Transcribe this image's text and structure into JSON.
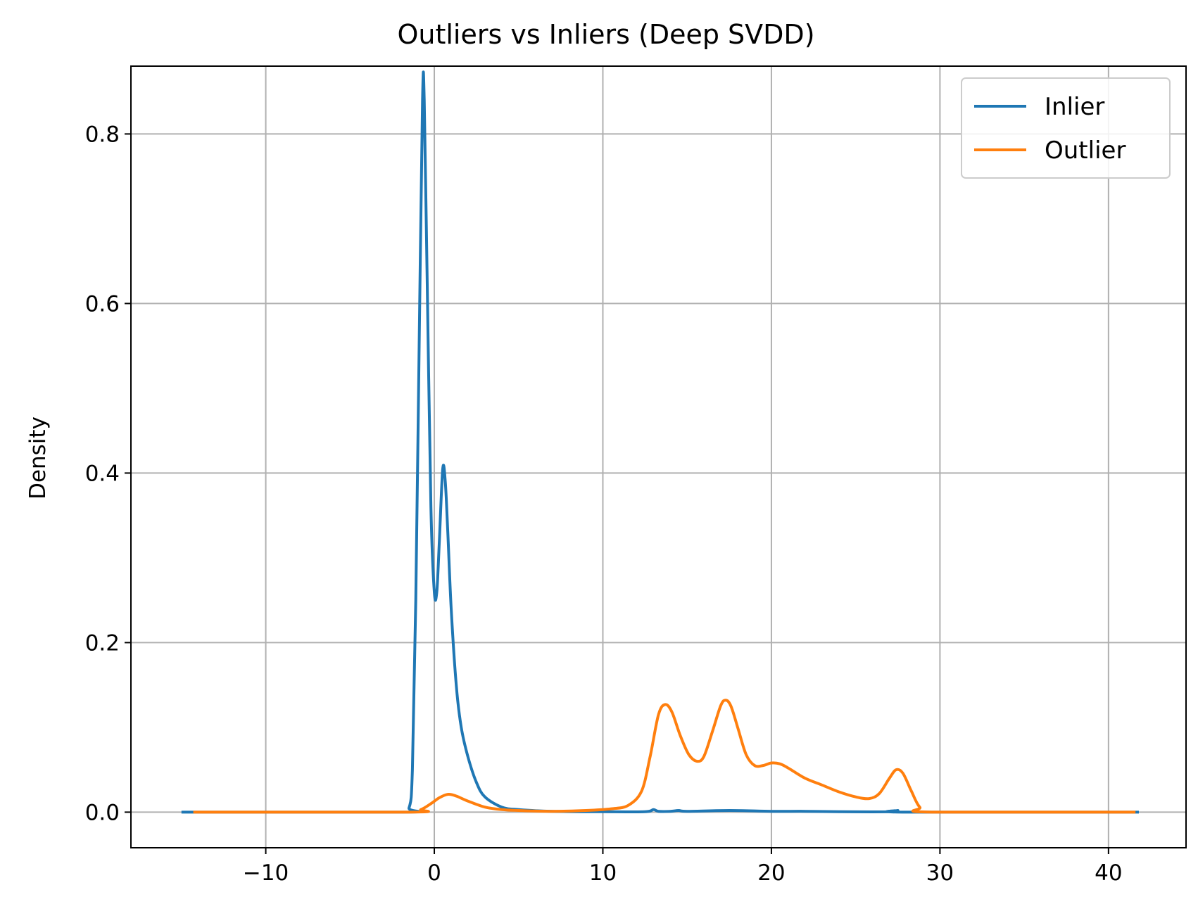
{
  "chart_data": {
    "type": "line",
    "title": "Outliers vs Inliers (Deep SVDD)",
    "xlabel": "",
    "ylabel": "Density",
    "xlim": [
      -18,
      44.6
    ],
    "ylim": [
      -0.042,
      0.88
    ],
    "xticks": [
      -10,
      0,
      10,
      20,
      30,
      40
    ],
    "xtick_labels": [
      "−10",
      "0",
      "10",
      "20",
      "30",
      "40"
    ],
    "yticks": [
      0.0,
      0.2,
      0.4,
      0.6,
      0.8
    ],
    "ytick_labels": [
      "0.0",
      "0.2",
      "0.4",
      "0.6",
      "0.8"
    ],
    "grid": true,
    "legend_position": "top-right",
    "series": [
      {
        "name": "Inlier",
        "color": "#1f77b4",
        "points": [
          [
            -15,
            0
          ],
          [
            -2,
            0
          ],
          [
            -1.5,
            0.005
          ],
          [
            -1.3,
            0.05
          ],
          [
            -1.1,
            0.25
          ],
          [
            -0.9,
            0.55
          ],
          [
            -0.7,
            0.84
          ],
          [
            -0.6,
            0.84
          ],
          [
            -0.4,
            0.6
          ],
          [
            -0.2,
            0.36
          ],
          [
            0.0,
            0.26
          ],
          [
            0.15,
            0.26
          ],
          [
            0.3,
            0.32
          ],
          [
            0.5,
            0.405
          ],
          [
            0.65,
            0.39
          ],
          [
            0.8,
            0.33
          ],
          [
            1.0,
            0.24
          ],
          [
            1.3,
            0.15
          ],
          [
            1.6,
            0.1
          ],
          [
            2.0,
            0.065
          ],
          [
            2.5,
            0.035
          ],
          [
            3.0,
            0.018
          ],
          [
            4.0,
            0.006
          ],
          [
            5.0,
            0.003
          ],
          [
            7.0,
            0.001
          ],
          [
            10.0,
            0.0005
          ],
          [
            12.5,
            0.0005
          ],
          [
            13.0,
            0.003
          ],
          [
            13.3,
            0.001
          ],
          [
            14.0,
            0.001
          ],
          [
            14.5,
            0.002
          ],
          [
            15.0,
            0.001
          ],
          [
            17.5,
            0.002
          ],
          [
            20.0,
            0.001
          ],
          [
            22.0,
            0.001
          ],
          [
            24.0,
            0.0005
          ],
          [
            27.0,
            0.0005
          ],
          [
            27.5,
            0.002
          ],
          [
            28.0,
            0.0
          ],
          [
            41.8,
            0
          ]
        ]
      },
      {
        "name": "Outlier",
        "color": "#ff7f0e",
        "points": [
          [
            -14.3,
            0
          ],
          [
            -1.5,
            0
          ],
          [
            -0.8,
            0.003
          ],
          [
            -0.2,
            0.01
          ],
          [
            0.3,
            0.017
          ],
          [
            0.8,
            0.021
          ],
          [
            1.3,
            0.019
          ],
          [
            2.0,
            0.013
          ],
          [
            3.0,
            0.006
          ],
          [
            4.0,
            0.003
          ],
          [
            5.0,
            0.002
          ],
          [
            7.0,
            0.001
          ],
          [
            9.0,
            0.002
          ],
          [
            10.5,
            0.004
          ],
          [
            11.5,
            0.008
          ],
          [
            12.3,
            0.025
          ],
          [
            12.8,
            0.065
          ],
          [
            13.3,
            0.115
          ],
          [
            13.7,
            0.127
          ],
          [
            14.1,
            0.118
          ],
          [
            14.6,
            0.09
          ],
          [
            15.1,
            0.068
          ],
          [
            15.6,
            0.06
          ],
          [
            16.0,
            0.066
          ],
          [
            16.5,
            0.095
          ],
          [
            17.0,
            0.126
          ],
          [
            17.3,
            0.132
          ],
          [
            17.6,
            0.125
          ],
          [
            18.0,
            0.1
          ],
          [
            18.5,
            0.068
          ],
          [
            19.0,
            0.055
          ],
          [
            19.5,
            0.055
          ],
          [
            20.0,
            0.058
          ],
          [
            20.5,
            0.057
          ],
          [
            21.0,
            0.052
          ],
          [
            22.0,
            0.04
          ],
          [
            23.0,
            0.032
          ],
          [
            24.0,
            0.024
          ],
          [
            25.0,
            0.018
          ],
          [
            25.8,
            0.016
          ],
          [
            26.4,
            0.022
          ],
          [
            27.0,
            0.04
          ],
          [
            27.4,
            0.05
          ],
          [
            27.8,
            0.046
          ],
          [
            28.3,
            0.025
          ],
          [
            28.8,
            0.006
          ],
          [
            29.5,
            0.0
          ],
          [
            41.6,
            0
          ]
        ]
      }
    ]
  }
}
